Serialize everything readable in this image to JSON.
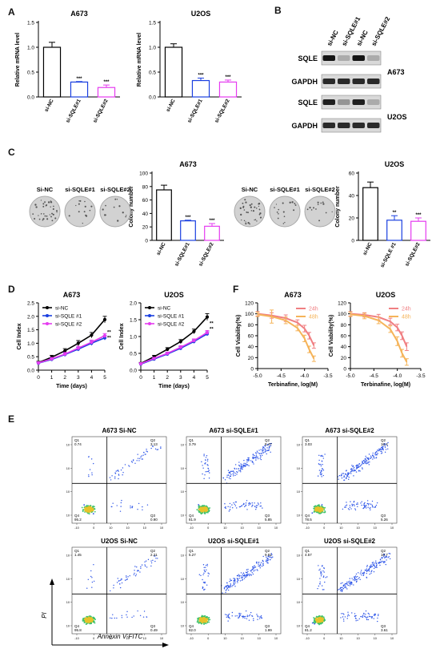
{
  "panel_letters": [
    "A",
    "B",
    "C",
    "D",
    "F",
    "E"
  ],
  "colors": {
    "black": "#000000",
    "blue": "#1a3fe0",
    "magenta": "#e53bf0",
    "salmon": "#f07f82",
    "orange": "#f5b45a",
    "blot_band": "#1b1b1b",
    "blot_bg": "#d9d9d9",
    "dish_fill": "#d2d2d2",
    "flow_dot": "#2d55e8"
  },
  "chart_data": [
    {
      "id": "A_A673",
      "type": "bar",
      "title": "A673",
      "ylabel": "Relative mRNA level",
      "ylim": [
        0,
        1.5
      ],
      "yticks": [
        0.0,
        0.5,
        1.0,
        1.5
      ],
      "ytick_labels": [
        "0.0",
        "0.5",
        "1.0",
        "1.5"
      ],
      "categories": [
        "si-NC",
        "si-SQLE#1",
        "si-SQLE#2"
      ],
      "values": [
        1.0,
        0.3,
        0.19
      ],
      "errors": [
        0.1,
        0.01,
        0.05
      ],
      "significance": [
        "",
        "***",
        "***"
      ],
      "colors": [
        "#000000",
        "#1a3fe0",
        "#e53bf0"
      ]
    },
    {
      "id": "A_U2OS",
      "type": "bar",
      "title": "U2OS",
      "ylabel": "Relative mRNA level",
      "ylim": [
        0,
        1.5
      ],
      "yticks": [
        0.0,
        0.5,
        1.0,
        1.5
      ],
      "ytick_labels": [
        "0.0",
        "0.5",
        "1.0",
        "1.5"
      ],
      "categories": [
        "si-NC",
        "si-SQLE#1",
        "si-SQLE#2"
      ],
      "values": [
        1.0,
        0.33,
        0.3
      ],
      "errors": [
        0.07,
        0.05,
        0.04
      ],
      "significance": [
        "",
        "***",
        "***"
      ],
      "colors": [
        "#000000",
        "#1a3fe0",
        "#e53bf0"
      ]
    },
    {
      "id": "C_A673",
      "type": "bar",
      "title": "A673",
      "ylabel": "Colony number",
      "ylim": [
        0,
        100
      ],
      "yticks": [
        0,
        20,
        40,
        60,
        80,
        100
      ],
      "ytick_labels": [
        "0",
        "20",
        "40",
        "60",
        "80",
        "100"
      ],
      "categories": [
        "si-NC",
        "si-SQLE#1",
        "si-SQLE#2"
      ],
      "values": [
        75,
        29,
        21
      ],
      "errors": [
        7,
        1,
        4
      ],
      "significance": [
        "",
        "***",
        "***"
      ],
      "colors": [
        "#000000",
        "#1a3fe0",
        "#e53bf0"
      ]
    },
    {
      "id": "C_U2OS",
      "type": "bar",
      "title": "U2OS",
      "ylabel": "Colony number",
      "ylim": [
        0,
        60
      ],
      "yticks": [
        0,
        20,
        40,
        60
      ],
      "ytick_labels": [
        "0",
        "20",
        "40",
        "60"
      ],
      "categories": [
        "si-NC",
        "si-SQLE #1",
        "si-SQLE#2"
      ],
      "values": [
        47,
        18,
        17
      ],
      "errors": [
        5,
        4,
        3
      ],
      "significance": [
        "",
        "**",
        "***"
      ],
      "colors": [
        "#000000",
        "#1a3fe0",
        "#e53bf0"
      ]
    },
    {
      "id": "D_A673",
      "type": "line",
      "title": "A673",
      "xlabel": "Time (days)",
      "ylabel": "Cell Index",
      "xlim": [
        0,
        5
      ],
      "ylim": [
        0,
        2.5
      ],
      "x": [
        0,
        1,
        2,
        3,
        4,
        5
      ],
      "xtick_labels": [
        "0",
        "1",
        "2",
        "3",
        "4",
        "5"
      ],
      "yticks": [
        0.0,
        0.5,
        1.0,
        1.5,
        2.0,
        2.5
      ],
      "ytick_labels": [
        "0.0",
        "0.5",
        "1.0",
        "1.5",
        "2.0",
        "2.5"
      ],
      "series": [
        {
          "name": "si-NC",
          "values": [
            0.28,
            0.48,
            0.72,
            1.0,
            1.3,
            1.88
          ],
          "errors": [
            0.05,
            0.07,
            0.08,
            0.1,
            0.1,
            0.12
          ],
          "color": "#000000"
        },
        {
          "name": "si-SQLE #1",
          "values": [
            0.26,
            0.4,
            0.58,
            0.78,
            1.0,
            1.2
          ],
          "errors": [
            0.04,
            0.05,
            0.06,
            0.07,
            0.08,
            0.08
          ],
          "color": "#1a3fe0"
        },
        {
          "name": "si-SQLE #2",
          "values": [
            0.27,
            0.42,
            0.6,
            0.82,
            1.04,
            1.28
          ],
          "errors": [
            0.04,
            0.05,
            0.06,
            0.07,
            0.08,
            0.08
          ],
          "color": "#e53bf0"
        }
      ],
      "significance": [
        "**",
        "**"
      ]
    },
    {
      "id": "D_U2OS",
      "type": "line",
      "title": "U2OS",
      "xlabel": "Time (days)",
      "ylabel": "Cell Index",
      "xlim": [
        0,
        5
      ],
      "ylim": [
        0,
        2.0
      ],
      "x": [
        0,
        1,
        2,
        3,
        4,
        5
      ],
      "xtick_labels": [
        "0",
        "1",
        "2",
        "3",
        "4",
        "5"
      ],
      "yticks": [
        0.0,
        0.5,
        1.0,
        1.5,
        2.0
      ],
      "ytick_labels": [
        "0.0",
        "0.5",
        "1.0",
        "1.5",
        "2.0"
      ],
      "series": [
        {
          "name": "si-NC",
          "values": [
            0.2,
            0.4,
            0.62,
            0.85,
            1.15,
            1.58
          ],
          "errors": [
            0.03,
            0.04,
            0.05,
            0.06,
            0.07,
            0.1
          ],
          "color": "#000000"
        },
        {
          "name": "si-SQLE #1",
          "values": [
            0.18,
            0.33,
            0.48,
            0.65,
            0.85,
            1.08
          ],
          "errors": [
            0.03,
            0.03,
            0.04,
            0.05,
            0.05,
            0.06
          ],
          "color": "#1a3fe0"
        },
        {
          "name": "si-SQLE #2",
          "values": [
            0.19,
            0.35,
            0.5,
            0.68,
            0.88,
            1.12
          ],
          "errors": [
            0.03,
            0.03,
            0.04,
            0.05,
            0.05,
            0.06
          ],
          "color": "#e53bf0"
        }
      ],
      "significance": [
        "**",
        "**"
      ]
    },
    {
      "id": "F_A673",
      "type": "line",
      "title": "A673",
      "xlabel": "Terbinafine, log(M)",
      "ylabel": "Cell Viability(%)",
      "xlim": [
        -5.0,
        -3.5
      ],
      "ylim": [
        0,
        120
      ],
      "xticks": [
        -5.0,
        -4.5,
        -4.0,
        -3.5
      ],
      "xtick_labels": [
        "-5.0",
        "-4.5",
        "-4.0",
        "-3.5"
      ],
      "yticks": [
        0,
        20,
        40,
        60,
        80,
        100,
        120
      ],
      "ytick_labels": [
        "0",
        "20",
        "40",
        "60",
        "80",
        "100",
        "120"
      ],
      "series": [
        {
          "name": "24h",
          "x": [
            -5.0,
            -4.7,
            -4.4,
            -4.15,
            -4.0,
            -3.9,
            -3.8
          ],
          "values": [
            100,
            97,
            92,
            84,
            73,
            60,
            42
          ],
          "errors": [
            4,
            5,
            6,
            5,
            6,
            6,
            5
          ],
          "color": "#f07f82"
        },
        {
          "name": "48h",
          "x": [
            -5.0,
            -4.7,
            -4.4,
            -4.15,
            -4.0,
            -3.9,
            -3.8
          ],
          "values": [
            99,
            95,
            88,
            74,
            55,
            35,
            18
          ],
          "errors": [
            4,
            12,
            6,
            5,
            6,
            6,
            5
          ],
          "color": "#f5b45a"
        }
      ]
    },
    {
      "id": "F_U2OS",
      "type": "line",
      "title": "U2OS",
      "xlabel": "Terbinafine, log(M)",
      "ylabel": "Cell Viability(%)",
      "xlim": [
        -5.0,
        -3.5
      ],
      "ylim": [
        0,
        120
      ],
      "xticks": [
        -5.0,
        -4.5,
        -4.0,
        -3.5
      ],
      "xtick_labels": [
        "-5.0",
        "-4.5",
        "-4.0",
        "-3.5"
      ],
      "yticks": [
        0,
        20,
        40,
        60,
        80,
        100,
        120
      ],
      "ytick_labels": [
        "0",
        "20",
        "40",
        "60",
        "80",
        "100",
        "120"
      ],
      "series": [
        {
          "name": "24h",
          "x": [
            -5.0,
            -4.7,
            -4.4,
            -4.15,
            -4.0,
            -3.9,
            -3.8
          ],
          "values": [
            100,
            98,
            94,
            86,
            75,
            60,
            40
          ],
          "errors": [
            4,
            4,
            5,
            6,
            6,
            7,
            7
          ],
          "color": "#f07f82"
        },
        {
          "name": "48h",
          "x": [
            -5.0,
            -4.7,
            -4.4,
            -4.15,
            -4.0,
            -3.9,
            -3.8
          ],
          "values": [
            99,
            96,
            88,
            72,
            50,
            28,
            12
          ],
          "errors": [
            4,
            5,
            6,
            6,
            8,
            7,
            6
          ],
          "color": "#f5b45a"
        }
      ]
    }
  ],
  "blot": {
    "lanes": [
      "si-NC",
      "si-SQLE#1",
      "si-NC",
      "si-SQLE#2"
    ],
    "rows": [
      {
        "label": "SQLE",
        "intensities": [
          1.0,
          0.3,
          1.0,
          0.3
        ]
      },
      {
        "label": "GAPDH",
        "intensities": [
          0.9,
          0.9,
          0.9,
          0.9
        ]
      },
      {
        "label": "SQLE",
        "intensities": [
          0.95,
          0.4,
          0.95,
          0.3
        ]
      },
      {
        "label": "GAPDH",
        "intensities": [
          0.9,
          0.9,
          0.9,
          0.9
        ]
      }
    ],
    "cell_lines": [
      "A673",
      "U2OS"
    ]
  },
  "colony": {
    "a673_labels": [
      "Si-NC",
      "si-SQLE#1",
      "si-SQLE#2"
    ],
    "u2os_labels": [
      "Si-NC",
      "si-SQLE#1",
      "si-SQLE#2"
    ],
    "a673_density": [
      0.9,
      0.35,
      0.3
    ],
    "u2os_density": [
      0.85,
      0.4,
      0.35
    ]
  },
  "flow": {
    "plots": [
      {
        "title": "A673 Si-NC",
        "q1": "Q1",
        "q1v": "0.74",
        "q2": "Q2",
        "q2v": "3.13",
        "q3": "Q3",
        "q3v": "0.90",
        "q4": "Q4",
        "q4v": "95.2",
        "late": 0.3
      },
      {
        "title": "A673 si-SQLE#1",
        "q1": "Q1",
        "q1v": "3.79",
        "q2": "Q2",
        "q2v": "8.47",
        "q3": "Q3",
        "q3v": "5.85",
        "q4": "Q4",
        "q4v": "81.9",
        "late": 0.9
      },
      {
        "title": "A673 si-SQLE#2",
        "q1": "Q1",
        "q1v": "3.03",
        "q2": "Q2",
        "q2v": "10.4",
        "q3": "Q3",
        "q3v": "5.26",
        "q4": "Q4",
        "q4v": "78.5",
        "late": 1.0
      },
      {
        "title": "U2OS Si-NC",
        "q1": "Q1",
        "q1v": "1.45",
        "q2": "Q2",
        "q2v": "2.21",
        "q3": "Q3",
        "q3v": "0.49",
        "q4": "Q4",
        "q4v": "95.8",
        "late": 0.3
      },
      {
        "title": "U2OS si-SQLE#1",
        "q1": "Q1",
        "q1v": "5.27",
        "q2": "Q2",
        "q2v": "9.81",
        "q3": "Q3",
        "q3v": "1.99",
        "q4": "Q4",
        "q4v": "82.0",
        "late": 0.95
      },
      {
        "title": "U2OS si-SQLE#2",
        "q1": "Q1",
        "q1v": "4.57",
        "q2": "Q2",
        "q2v": "10.7",
        "q3": "Q3",
        "q3v": "3.61",
        "q4": "Q4",
        "q4v": "81.2",
        "late": 1.0
      }
    ],
    "x_ticks": [
      "-10",
      "0",
      "10",
      "10",
      "10",
      "10"
    ],
    "y_ticks": [
      "10",
      "10",
      "10",
      "10"
    ],
    "y_axis_label": "PI",
    "x_axis_label": "Annexin V-FITC"
  }
}
